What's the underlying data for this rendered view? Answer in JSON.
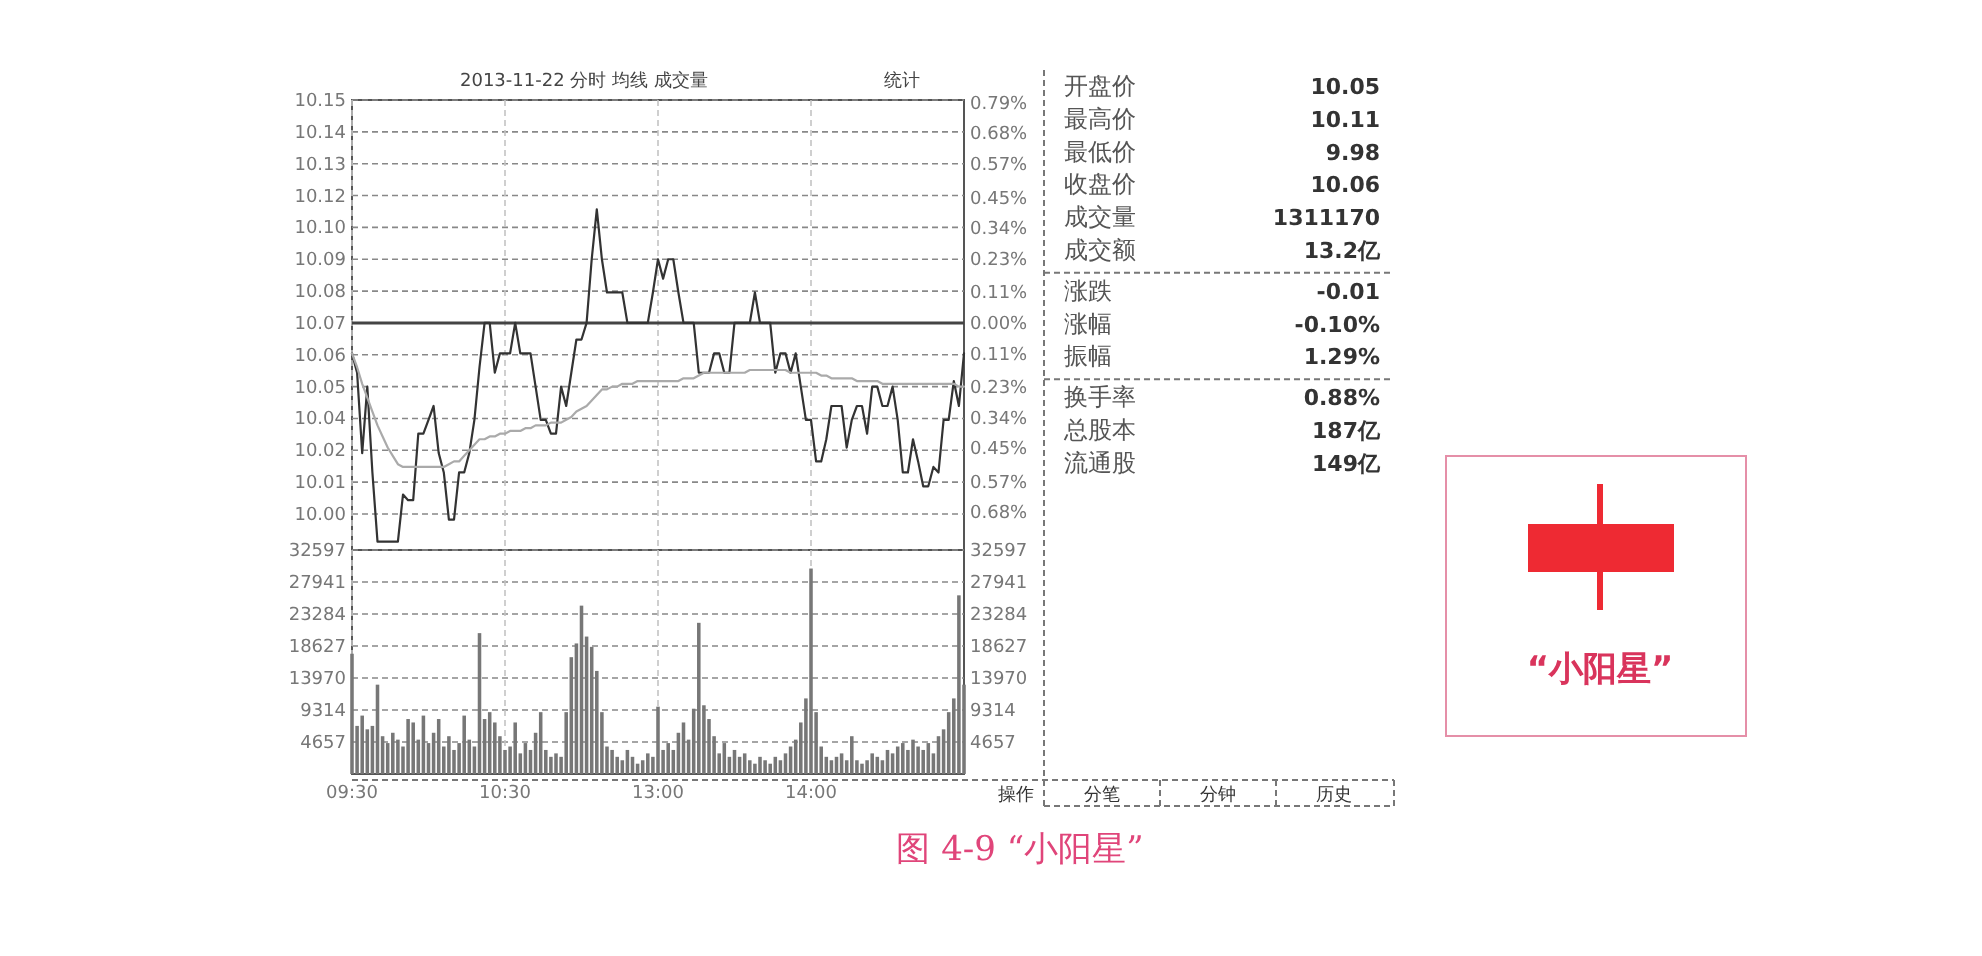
{
  "chart_data": [
    {
      "type": "line",
      "title": "2013-11-22 分时 均线 成交量",
      "annotations": [
        "统计"
      ],
      "categories": [
        null,
        null,
        null,
        null,
        null,
        null,
        null,
        null,
        null,
        null,
        null,
        null,
        null,
        null,
        null,
        null,
        null,
        null,
        null,
        null,
        null,
        null,
        null,
        null,
        null,
        null,
        null,
        null,
        null,
        null,
        null,
        null,
        null,
        null,
        null,
        null,
        null,
        null,
        null,
        null,
        null,
        null,
        null,
        null,
        null,
        null,
        null,
        null,
        null,
        null,
        null,
        null,
        null,
        null,
        null,
        null,
        null,
        null,
        null,
        null,
        null,
        null,
        null,
        null,
        null,
        null,
        null,
        null,
        null,
        null,
        null,
        null,
        null,
        null,
        null,
        null,
        null,
        null,
        null,
        null,
        null,
        null,
        null,
        null,
        null,
        null,
        null,
        null,
        null,
        null,
        null,
        null,
        null,
        null,
        null,
        null,
        null,
        null,
        null,
        null,
        null,
        null,
        null,
        null,
        null,
        null,
        null,
        null,
        null,
        null,
        null,
        null,
        null,
        null,
        null,
        null,
        null,
        null,
        null,
        null,
        null
      ],
      "series": [
        {
          "color": "#333333",
          "values": [
            10.059,
            10.052,
            10.023,
            10.047,
            10.016,
            9.991,
            9.991,
            9.991,
            9.991,
            9.991,
            10.008,
            10.006,
            10.006,
            10.03,
            10.03,
            10.035,
            10.04,
            10.023,
            10.016,
            9.999,
            9.999,
            10.016,
            10.016,
            10.023,
            10.035,
            10.054,
            10.07,
            10.07,
            10.052,
            10.059,
            10.059,
            10.059,
            10.07,
            10.059,
            10.059,
            10.059,
            10.047,
            10.035,
            10.035,
            10.03,
            10.03,
            10.047,
            10.04,
            10.052,
            10.064,
            10.064,
            10.07,
            10.093,
            10.111,
            10.093,
            10.081,
            10.081,
            10.081,
            10.081,
            10.07,
            10.07,
            10.07,
            10.07,
            10.07,
            10.081,
            10.093,
            10.086,
            10.093,
            10.093,
            10.081,
            10.07,
            10.07,
            10.07,
            10.052,
            10.052,
            10.052,
            10.059,
            10.059,
            10.052,
            10.052,
            10.07,
            10.07,
            10.07,
            10.07,
            10.081,
            10.07,
            10.07,
            10.07,
            10.052,
            10.059,
            10.059,
            10.052,
            10.059,
            10.047,
            10.035,
            10.035,
            10.02,
            10.02,
            10.028,
            10.04,
            10.04,
            10.04,
            10.025,
            10.035,
            10.04,
            10.04,
            10.03,
            10.047,
            10.047,
            10.04,
            10.04,
            10.047,
            10.035,
            10.016,
            10.016,
            10.028,
            10.02,
            10.011,
            10.011,
            10.018,
            10.016,
            10.035,
            10.035,
            10.049,
            10.04,
            10.059
          ]
        },
        {
          "color": "#aaaaaa",
          "values": [
            10.059,
            10.054,
            10.048,
            10.043,
            10.038,
            10.033,
            10.029,
            10.025,
            10.022,
            10.019,
            10.018,
            10.018,
            10.018,
            10.018,
            10.018,
            10.018,
            10.018,
            10.018,
            10.018,
            10.019,
            10.02,
            10.02,
            10.022,
            10.024,
            10.026,
            10.028,
            10.028,
            10.029,
            10.029,
            10.03,
            10.03,
            10.031,
            10.031,
            10.031,
            10.032,
            10.032,
            10.033,
            10.033,
            10.033,
            10.034,
            10.034,
            10.034,
            10.035,
            10.036,
            10.038,
            10.039,
            10.04,
            10.042,
            10.044,
            10.046,
            10.046,
            10.047,
            10.047,
            10.048,
            10.048,
            10.048,
            10.049,
            10.049,
            10.049,
            10.049,
            10.049,
            10.049,
            10.049,
            10.049,
            10.049,
            10.05,
            10.05,
            10.05,
            10.051,
            10.052,
            10.052,
            10.052,
            10.052,
            10.052,
            10.052,
            10.052,
            10.052,
            10.052,
            10.053,
            10.053,
            10.053,
            10.053,
            10.053,
            10.053,
            10.053,
            10.053,
            10.052,
            10.052,
            10.052,
            10.052,
            10.052,
            10.052,
            10.051,
            10.051,
            10.05,
            10.05,
            10.05,
            10.05,
            10.05,
            10.049,
            10.049,
            10.049,
            10.049,
            10.049,
            10.048,
            10.048,
            10.048,
            10.048,
            10.048,
            10.048,
            10.048,
            10.048,
            10.048,
            10.048,
            10.048,
            10.048,
            10.048,
            10.048,
            10.048,
            10.047,
            10.047
          ]
        }
      ],
      "ylim": [
        9.988,
        10.1505
      ],
      "yticks": [
        {
          "value": 10.1505,
          "label": "10.15"
        },
        {
          "value": 10.139,
          "label": "10.14"
        },
        {
          "value": 10.1275,
          "label": "10.13"
        },
        {
          "value": 10.116,
          "label": "10.12"
        },
        {
          "value": 10.1045,
          "label": "10.10"
        },
        {
          "value": 10.093,
          "label": "10.09"
        },
        {
          "value": 10.0815,
          "label": "10.08"
        },
        {
          "value": 10.07,
          "label": "10.07"
        },
        {
          "value": 10.0585,
          "label": "10.06"
        },
        {
          "value": 10.047,
          "label": "10.05"
        },
        {
          "value": 10.0355,
          "label": "10.04"
        },
        {
          "value": 10.024,
          "label": "10.02"
        },
        {
          "value": 10.0125,
          "label": "10.01"
        },
        {
          "value": 10.001,
          "label": "10.00"
        }
      ],
      "y2lim": [
        -0.815,
        0.8
      ],
      "y2ticks": [
        {
          "value": 0.79,
          "label": "0.79%"
        },
        {
          "value": 0.68,
          "label": "0.68%"
        },
        {
          "value": 0.57,
          "label": "0.57%"
        },
        {
          "value": 0.45,
          "label": "0.45%"
        },
        {
          "value": 0.34,
          "label": "0.34%"
        },
        {
          "value": 0.23,
          "label": "0.23%"
        },
        {
          "value": 0.11,
          "label": "0.11%"
        },
        {
          "value": 0,
          "label": "0.00%"
        },
        {
          "value": -0.11,
          "label": "0.11%"
        },
        {
          "value": -0.23,
          "label": "0.23%"
        },
        {
          "value": -0.34,
          "label": "0.34%"
        },
        {
          "value": -0.45,
          "label": "0.45%"
        },
        {
          "value": -0.57,
          "label": "0.57%"
        },
        {
          "value": -0.68,
          "label": "0.68%"
        }
      ],
      "ref_lines": [
        {
          "axis": "y",
          "value": 10.07,
          "color": "#444444",
          "line_style": "solid"
        }
      ],
      "grid": true,
      "tick_labels": "y"
    },
    {
      "type": "bar",
      "color": "#777777",
      "annotations": [
        "图 4-9 “小阳星”"
      ],
      "categories": [
        "09:30",
        null,
        null,
        null,
        null,
        null,
        null,
        null,
        null,
        null,
        null,
        null,
        null,
        null,
        null,
        null,
        null,
        null,
        null,
        null,
        null,
        null,
        null,
        null,
        null,
        null,
        null,
        null,
        null,
        null,
        "10:30",
        null,
        null,
        null,
        null,
        null,
        null,
        null,
        null,
        null,
        null,
        null,
        null,
        null,
        null,
        null,
        null,
        null,
        null,
        null,
        null,
        null,
        null,
        null,
        null,
        null,
        null,
        null,
        null,
        null,
        "13:00",
        null,
        null,
        null,
        null,
        null,
        null,
        null,
        null,
        null,
        null,
        null,
        null,
        null,
        null,
        null,
        null,
        null,
        null,
        null,
        null,
        null,
        null,
        null,
        null,
        null,
        null,
        null,
        null,
        null,
        "14:00",
        null,
        null,
        null,
        null,
        null,
        null,
        null,
        null,
        null,
        null,
        null,
        null,
        null,
        null,
        null,
        null,
        null,
        null,
        null,
        null,
        null,
        null,
        null,
        null,
        null,
        null,
        null,
        null,
        null,
        null
      ],
      "values": [
        17500,
        7000,
        8500,
        6500,
        7000,
        13000,
        5500,
        4500,
        6000,
        5000,
        4000,
        8000,
        7500,
        5000,
        8500,
        4500,
        6000,
        8000,
        4000,
        5500,
        3500,
        4500,
        8500,
        5000,
        4000,
        20500,
        8000,
        9000,
        7500,
        5500,
        3500,
        4000,
        7500,
        3000,
        4500,
        3500,
        6000,
        9000,
        3500,
        2500,
        3000,
        2500,
        9000,
        17000,
        19000,
        24500,
        20000,
        18500,
        15000,
        9000,
        4000,
        3500,
        2500,
        2000,
        3500,
        2500,
        1500,
        2000,
        3000,
        2500,
        9800,
        3500,
        4500,
        3500,
        6000,
        7500,
        5000,
        9500,
        22000,
        10000,
        8000,
        5500,
        3000,
        4500,
        2500,
        3500,
        2500,
        3000,
        2000,
        1500,
        2500,
        2000,
        1500,
        2500,
        2000,
        3000,
        4000,
        5000,
        7500,
        11000,
        29900,
        9000,
        4000,
        2500,
        2000,
        2500,
        3000,
        2000,
        5500,
        2000,
        1500,
        2000,
        3000,
        2500,
        2000,
        3500,
        3000,
        4000,
        4500,
        3500,
        5000,
        4000,
        3500,
        4500,
        3000,
        5500,
        6500,
        9000,
        11000,
        26000,
        13000
      ],
      "ylim": [
        0,
        32597
      ],
      "yticks": [
        4657,
        9314,
        13970,
        18627,
        23284,
        27941,
        32597
      ],
      "y2lim": [
        0,
        32597
      ],
      "y2ticks": [
        4657,
        9314,
        13970,
        18627,
        23284,
        27941,
        32597
      ],
      "grid": true
    },
    {
      "type": "other",
      "categories": [
        "开盘价",
        "最高价",
        "最低价",
        "收盘价",
        "成交量",
        "成交额",
        "涨跌",
        "涨幅",
        "振幅",
        "换手率",
        "总股本",
        "流通股"
      ],
      "value_labels": [
        "10.05",
        "10.11",
        "9.98",
        "10.06",
        "1311170",
        "13.2亿",
        "-0.01",
        "-0.10%",
        "1.29%",
        "0.88%",
        "187亿",
        "149亿"
      ],
      "annotations": [
        "操作",
        "分笔",
        "分钟",
        "历史"
      ]
    },
    {
      "type": "other",
      "title": "“小阳星”"
    }
  ]
}
